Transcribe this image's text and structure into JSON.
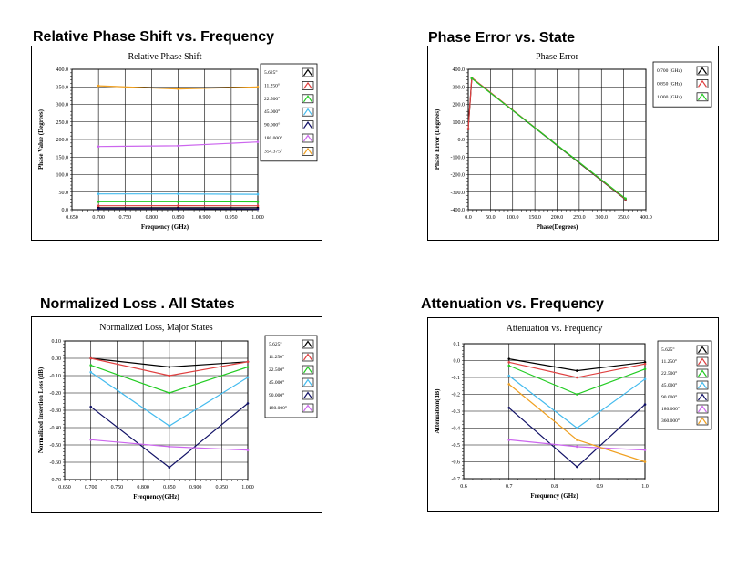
{
  "charts": [
    {
      "heading": "Relative Phase Shift vs. Frequency",
      "chart_data": {
        "type": "line",
        "title": "Relative Phase Shift",
        "xlabel": "Frequency (GHz)",
        "ylabel": "Phase Value (Degrees)",
        "xlim": [
          0.65,
          1.0
        ],
        "ylim": [
          0,
          400
        ],
        "xticks": [
          "0.650",
          "0.700",
          "0.750",
          "0.800",
          "0.850",
          "0.900",
          "0.950",
          "1.000"
        ],
        "yticks": [
          "0.0",
          "50.0",
          "100.0",
          "150.0",
          "200.0",
          "250.0",
          "300.0",
          "350.0",
          "400.0"
        ],
        "grid": true,
        "legend_position": "right",
        "series": [
          {
            "name": "5.625°",
            "color": "#000000",
            "points": [
              [
                0.7,
                5.6
              ],
              [
                0.85,
                5.6
              ],
              [
                1.0,
                5.6
              ]
            ]
          },
          {
            "name": "11.250°",
            "color": "#e04040",
            "points": [
              [
                0.7,
                11.2
              ],
              [
                0.85,
                11.5
              ],
              [
                1.0,
                11.2
              ]
            ]
          },
          {
            "name": "22.500°",
            "color": "#22cc22",
            "points": [
              [
                0.7,
                22.5
              ],
              [
                0.85,
                22.5
              ],
              [
                1.0,
                22.0
              ]
            ]
          },
          {
            "name": "45.000°",
            "color": "#44bbee",
            "points": [
              [
                0.7,
                45
              ],
              [
                0.85,
                45
              ],
              [
                1.0,
                44
              ]
            ]
          },
          {
            "name": "90.000°",
            "color": "#111166",
            "points": [
              [
                0.7,
                3
              ],
              [
                0.85,
                3
              ],
              [
                1.0,
                2
              ]
            ]
          },
          {
            "name": "180.000°",
            "color": "#cc66ee",
            "points": [
              [
                0.7,
                180
              ],
              [
                0.85,
                182
              ],
              [
                1.0,
                193
              ]
            ]
          },
          {
            "name": "354.375°",
            "color": "#f0a020",
            "points": [
              [
                0.7,
                353
              ],
              [
                0.85,
                344
              ],
              [
                1.0,
                350
              ]
            ]
          }
        ]
      }
    },
    {
      "heading": "Phase Error vs. State",
      "chart_data": {
        "type": "line",
        "title": "Phase Error",
        "xlabel": "Phase(Degrees)",
        "ylabel": "Phase Error (Degrees)",
        "xlim": [
          0,
          400
        ],
        "ylim": [
          -400,
          400
        ],
        "xticks": [
          "0.0",
          "50.0",
          "100.0",
          "150.0",
          "200.0",
          "250.0",
          "300.0",
          "350.0",
          "400.0"
        ],
        "yticks": [
          "400.0",
          "300.0",
          "200.0",
          "100.0",
          "0.0",
          "-100.0",
          "-200.0",
          "-300.0",
          "-400.0"
        ],
        "grid": true,
        "legend_position": "right",
        "series": [
          {
            "name": "0.700 (GHz)",
            "color": "#000000",
            "points": [
              [
                0,
                60
              ],
              [
                8,
                350
              ],
              [
                354,
                -342
              ]
            ]
          },
          {
            "name": "0.850 (GHz)",
            "color": "#e04040",
            "points": [
              [
                0,
                60
              ],
              [
                8,
                352
              ],
              [
                354,
                -340
              ]
            ]
          },
          {
            "name": "1.000 (GHz)",
            "color": "#22cc22",
            "points": [
              [
                8,
                348
              ],
              [
                354,
                -336
              ]
            ]
          }
        ]
      }
    },
    {
      "heading": "Normalized Loss . All States",
      "chart_data": {
        "type": "line",
        "title": "Normalized Loss, Major States",
        "xlabel": "Frequency(GHz)",
        "ylabel": "Normalized Insertion Loss (dB)",
        "xlim": [
          0.65,
          1.0
        ],
        "ylim": [
          -0.7,
          0.1
        ],
        "xticks": [
          "0.650",
          "0.700",
          "0.750",
          "0.800",
          "0.850",
          "0.900",
          "0.950",
          "1.000"
        ],
        "yticks": [
          "0.10",
          "0.00",
          "-0.10",
          "-0.20",
          "-0.30",
          "-0.40",
          "-0.50",
          "-0.60",
          "-0.70"
        ],
        "grid": true,
        "legend_position": "right",
        "series": [
          {
            "name": "5.625°",
            "color": "#000000",
            "points": [
              [
                0.7,
                0.0
              ],
              [
                0.85,
                -0.05
              ],
              [
                1.0,
                -0.02
              ]
            ]
          },
          {
            "name": "11.250°",
            "color": "#e04040",
            "points": [
              [
                0.7,
                0.0
              ],
              [
                0.85,
                -0.1
              ],
              [
                1.0,
                -0.02
              ]
            ]
          },
          {
            "name": "22.500°",
            "color": "#22cc22",
            "points": [
              [
                0.7,
                -0.04
              ],
              [
                0.85,
                -0.2
              ],
              [
                1.0,
                -0.05
              ]
            ]
          },
          {
            "name": "45.000°",
            "color": "#44bbee",
            "points": [
              [
                0.7,
                -0.08
              ],
              [
                0.85,
                -0.39
              ],
              [
                1.0,
                -0.11
              ]
            ]
          },
          {
            "name": "90.000°",
            "color": "#111166",
            "points": [
              [
                0.7,
                -0.28
              ],
              [
                0.85,
                -0.63
              ],
              [
                1.0,
                -0.26
              ]
            ]
          },
          {
            "name": "180.000°",
            "color": "#cc66ee",
            "points": [
              [
                0.7,
                -0.47
              ],
              [
                0.85,
                -0.51
              ],
              [
                1.0,
                -0.53
              ]
            ]
          }
        ]
      }
    },
    {
      "heading": "Attenuation vs.  Frequency",
      "chart_data": {
        "type": "line",
        "title": "Attenuation vs. Frequency",
        "xlabel": "Frequency (GHz)",
        "ylabel": "Attenuation(dB)",
        "xlim": [
          0.6,
          1.0
        ],
        "ylim": [
          -0.7,
          0.1
        ],
        "xticks": [
          "0.6",
          "0.7",
          "0.8",
          "0.9",
          "1.0"
        ],
        "yticks": [
          "0.1",
          "0.0",
          "-0.1",
          "-0.2",
          "-0.3",
          "-0.4",
          "-0.5",
          "-0.6",
          "-0.7"
        ],
        "grid": true,
        "legend_position": "right",
        "series": [
          {
            "name": "5.625°",
            "color": "#000000",
            "points": [
              [
                0.7,
                0.01
              ],
              [
                0.85,
                -0.06
              ],
              [
                1.0,
                -0.01
              ]
            ]
          },
          {
            "name": "11.250°",
            "color": "#e04040",
            "points": [
              [
                0.7,
                -0.01
              ],
              [
                0.85,
                -0.1
              ],
              [
                1.0,
                -0.02
              ]
            ]
          },
          {
            "name": "22.500°",
            "color": "#22cc22",
            "points": [
              [
                0.7,
                -0.03
              ],
              [
                0.85,
                -0.2
              ],
              [
                1.0,
                -0.05
              ]
            ]
          },
          {
            "name": "45.000°",
            "color": "#44bbee",
            "points": [
              [
                0.7,
                -0.09
              ],
              [
                0.85,
                -0.4
              ],
              [
                1.0,
                -0.11
              ]
            ]
          },
          {
            "name": "90.000°",
            "color": "#111166",
            "points": [
              [
                0.7,
                -0.28
              ],
              [
                0.85,
                -0.63
              ],
              [
                1.0,
                -0.26
              ]
            ]
          },
          {
            "name": "180.000°",
            "color": "#cc66ee",
            "points": [
              [
                0.7,
                -0.47
              ],
              [
                0.85,
                -0.51
              ],
              [
                1.0,
                -0.53
              ]
            ]
          },
          {
            "name": "360.000°",
            "color": "#f0a020",
            "points": [
              [
                0.7,
                -0.14
              ],
              [
                0.85,
                -0.47
              ],
              [
                1.0,
                -0.6
              ]
            ]
          }
        ]
      }
    }
  ]
}
